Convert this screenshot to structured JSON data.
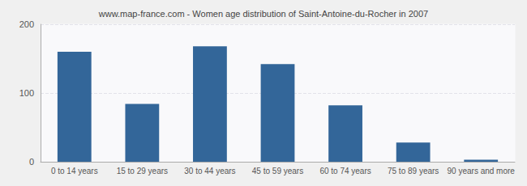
{
  "chart_data": {
    "type": "bar",
    "title": "www.map-france.com - Women age distribution of Saint-Antoine-du-Rocher in 2007",
    "categories": [
      "0 to 14 years",
      "15 to 29 years",
      "30 to 44 years",
      "45 to 59 years",
      "60 to 74 years",
      "75 to 89 years",
      "90 years and more"
    ],
    "values": [
      160,
      84,
      168,
      142,
      82,
      28,
      3
    ],
    "color": "#336699",
    "ylim": [
      0,
      200
    ],
    "yticks": [
      0,
      100,
      200
    ],
    "grid": true
  }
}
